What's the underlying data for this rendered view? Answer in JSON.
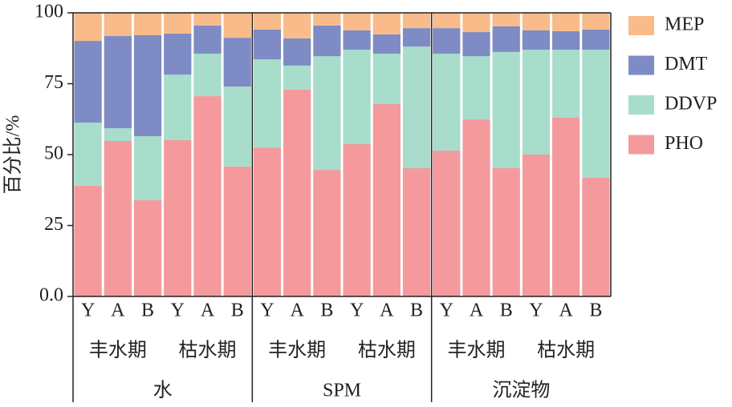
{
  "chart_data": {
    "type": "stacked-bar",
    "y_label": "百分比/%",
    "categories": [
      "Y",
      "A",
      "B",
      "Y",
      "A",
      "B",
      "Y",
      "A",
      "B",
      "Y",
      "A",
      "B",
      "Y",
      "A",
      "B",
      "Y",
      "A",
      "B"
    ],
    "periods": [
      "丰水期",
      "枯水期",
      "丰水期",
      "枯水期",
      "丰水期",
      "枯水期"
    ],
    "groups": [
      "水",
      "SPM",
      "沉淀物"
    ],
    "series": [
      {
        "name": "PHO",
        "color": "#f4999c",
        "values": [
          39,
          54.8,
          33.9,
          55.1,
          70.6,
          45.8,
          52.5,
          72.9,
          44.6,
          53.7,
          67.8,
          45.2,
          51.4,
          62.4,
          45.2,
          50,
          63,
          41.8
        ]
      },
      {
        "name": "DDVP",
        "color": "#a8dccb",
        "values": [
          22.3,
          4.5,
          22.6,
          23.1,
          15,
          28.2,
          31.1,
          8.5,
          40.1,
          33.3,
          17.8,
          42.9,
          34.2,
          22.3,
          41,
          37,
          24,
          45.2
        ]
      },
      {
        "name": "DMT",
        "color": "#7f8bc4",
        "values": [
          28.8,
          32.5,
          35.6,
          14.5,
          9.9,
          17.2,
          10.5,
          9.6,
          10.8,
          6.8,
          6.8,
          6.5,
          9,
          8.5,
          9,
          6.8,
          6.5,
          7.1
        ]
      },
      {
        "name": "MEP",
        "color": "#f9bb8a",
        "values": [
          9.9,
          8.2,
          7.9,
          7.3,
          4.5,
          8.8,
          5.9,
          9,
          4.5,
          6.2,
          7.6,
          5.4,
          5.4,
          6.8,
          4.8,
          6.2,
          6.5,
          5.9
        ]
      }
    ],
    "ylim": [
      0,
      100
    ],
    "yticks": [
      {
        "value": 0,
        "label": "0.0"
      },
      25,
      50,
      75,
      100
    ],
    "legend": "right"
  }
}
